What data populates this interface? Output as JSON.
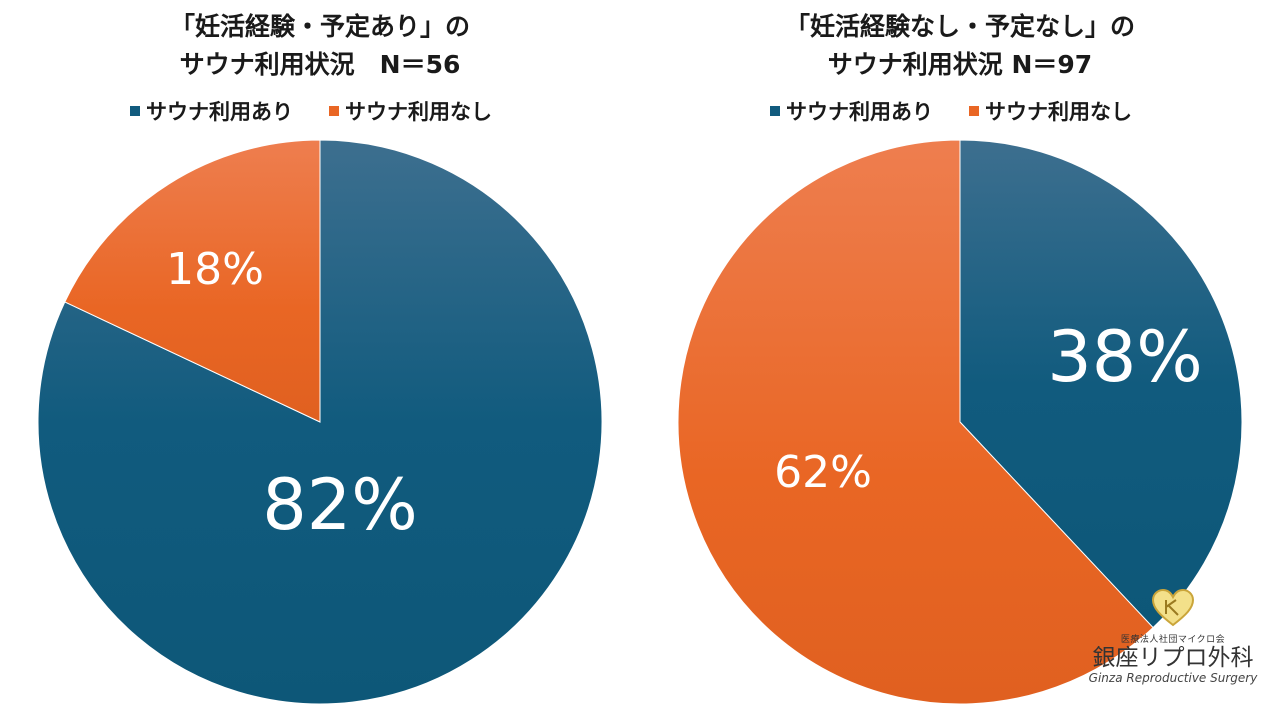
{
  "colors": {
    "blue": "#115b7e",
    "orange": "#e96624"
  },
  "chart_data": [
    {
      "type": "pie",
      "title": "「妊活経験・予定あり」の\nサウナ利用状況　N＝56",
      "legend": [
        "サウナ利用あり",
        "サウナ利用なし"
      ],
      "legend_placement": "top",
      "slices": [
        {
          "name": "サウナ利用あり",
          "value": 82,
          "label": "82%"
        },
        {
          "name": "サウナ利用なし",
          "value": 18,
          "label": "18%"
        }
      ]
    },
    {
      "type": "pie",
      "title": "「妊活経験なし・予定なし」の\nサウナ利用状況 N＝97",
      "legend": [
        "サウナ利用あり",
        "サウナ利用なし"
      ],
      "legend_placement": "top",
      "slices": [
        {
          "name": "サウナ利用あり",
          "value": 38,
          "label": "38%"
        },
        {
          "name": "サウナ利用なし",
          "value": 62,
          "label": "62%"
        }
      ]
    }
  ],
  "logo": {
    "org": "医療法人社団マイクロ会",
    "name": "銀座リプロ外科",
    "english": "Ginza Reproductive Surgery"
  }
}
